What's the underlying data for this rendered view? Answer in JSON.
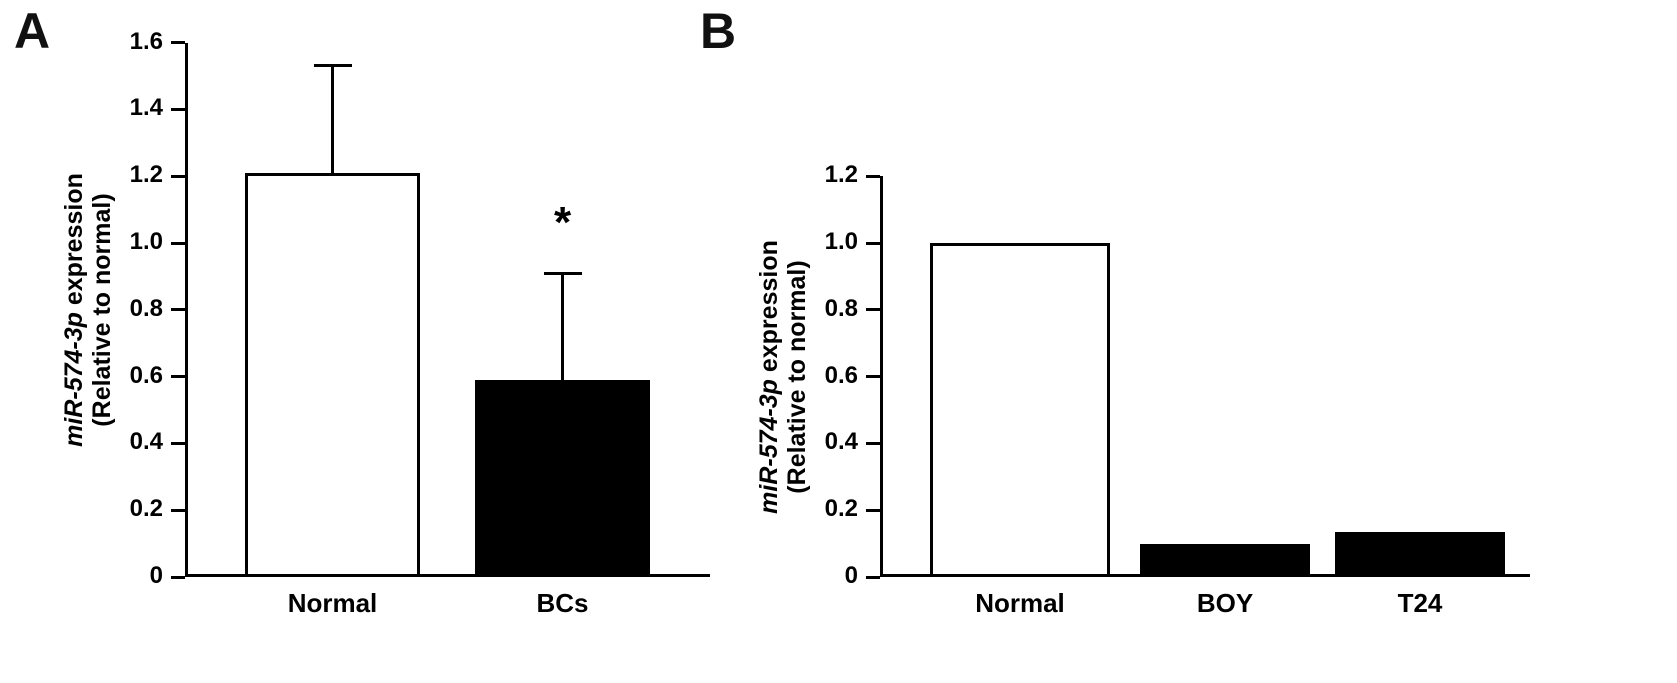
{
  "figure": {
    "background": "#ffffff",
    "axis_color": "#000000"
  },
  "chart_data": [
    {
      "type": "bar",
      "panel_label": "A",
      "title": "",
      "ylabel_italic": "miR-574-3p",
      "ylabel_rest": " expression",
      "ylabel_line2": "(Relative to normal)",
      "xlabel": "",
      "categories": [
        "Normal",
        "BCs"
      ],
      "values": [
        1.21,
        0.59
      ],
      "errors": [
        0.32,
        0.32
      ],
      "bar_fills": [
        "#ffffff",
        "#000000"
      ],
      "significance": [
        null,
        "*"
      ],
      "ylim": [
        0,
        1.6
      ],
      "ytick_labels": [
        "0",
        "0.2",
        "0.4",
        "0.6",
        "0.8",
        "1.0",
        "1.2",
        "1.4",
        "1.6"
      ],
      "legend": "none",
      "grid": false
    },
    {
      "type": "bar",
      "panel_label": "B",
      "title": "",
      "ylabel_italic": "miR-574-3p",
      "ylabel_rest": " expression",
      "ylabel_line2": "(Relative to normal)",
      "xlabel": "",
      "categories": [
        "Normal",
        "BOY",
        "T24"
      ],
      "values": [
        1.0,
        0.1,
        0.135
      ],
      "errors": [
        0,
        0,
        0
      ],
      "bar_fills": [
        "#ffffff",
        "#000000",
        "#000000"
      ],
      "significance": [
        null,
        null,
        null
      ],
      "ylim": [
        0,
        1.2
      ],
      "ytick_labels": [
        "0",
        "0.2",
        "0.4",
        "0.6",
        "0.8",
        "1.0",
        "1.2"
      ],
      "legend": "none",
      "grid": false
    }
  ]
}
